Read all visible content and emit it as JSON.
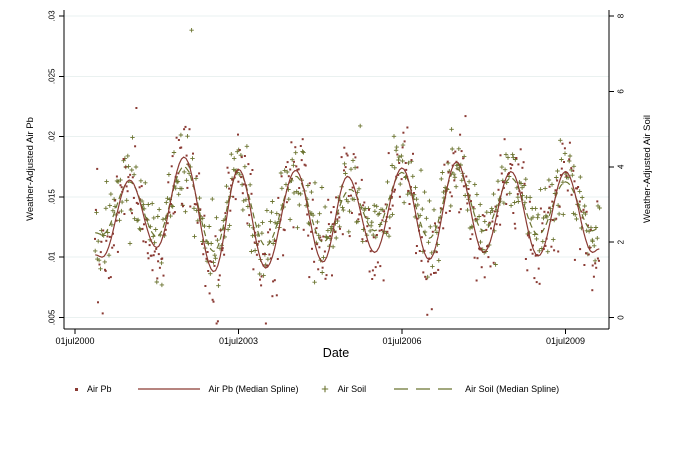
{
  "page": {
    "background": "#ffffff"
  },
  "chart_data": {
    "type": "scatter",
    "title": "",
    "xlabel": "Date",
    "grid": {
      "show": true,
      "color": "#eaf1f0"
    },
    "legend_position": "bottom",
    "x_axis": {
      "tick_labels": [
        "01jul2000",
        "01jul2003",
        "01jul2006",
        "01jul2009"
      ],
      "tick_years": [
        2000.5,
        2003.5,
        2006.5,
        2009.5
      ]
    },
    "left_axis": {
      "title": "Weather-Adjusted Air Pb",
      "tick_labels": [
        ".005",
        ".01",
        ".015",
        ".02",
        ".025",
        ".03"
      ],
      "tick_values": [
        0.005,
        0.01,
        0.015,
        0.02,
        0.025,
        0.03
      ],
      "range": [
        0.005,
        0.03
      ]
    },
    "right_axis": {
      "title": "Weather-Adjusted Air Soil",
      "tick_labels": [
        "0",
        "2",
        "4",
        "6",
        "8"
      ],
      "tick_values": [
        0,
        2,
        4,
        6,
        8
      ],
      "range": [
        0,
        8
      ]
    },
    "series": [
      {
        "name": "Air Pb",
        "type": "scatter",
        "axis": "left",
        "marker": "dot",
        "color": "#8a3a33",
        "noise_sd": 0.002,
        "clamp": [
          0.0045,
          0.0295
        ],
        "spline_ref": 1
      },
      {
        "name": "Air Pb (Median Spline)",
        "type": "spline",
        "axis": "left",
        "color": "#8a3a33",
        "dash": null,
        "knots": [
          [
            2000.87,
            0.0102
          ],
          [
            2001.0,
            0.01
          ],
          [
            2001.5,
            0.0164
          ],
          [
            2002.0,
            0.0108
          ],
          [
            2002.5,
            0.0183
          ],
          [
            2003.05,
            0.0088
          ],
          [
            2003.5,
            0.0173
          ],
          [
            2004.0,
            0.0091
          ],
          [
            2004.55,
            0.0172
          ],
          [
            2005.05,
            0.0096
          ],
          [
            2005.5,
            0.0167
          ],
          [
            2006.0,
            0.0104
          ],
          [
            2006.5,
            0.0174
          ],
          [
            2007.0,
            0.0098
          ],
          [
            2007.5,
            0.0179
          ],
          [
            2008.0,
            0.0104
          ],
          [
            2008.5,
            0.0171
          ],
          [
            2009.0,
            0.0101
          ],
          [
            2009.5,
            0.0171
          ],
          [
            2010.0,
            0.0104
          ],
          [
            2010.12,
            0.0107
          ]
        ]
      },
      {
        "name": "Air Soil",
        "type": "scatter",
        "axis": "right",
        "marker": "plus",
        "color": "#6b7430",
        "noise_sd": 0.55,
        "clamp": [
          0.15,
          7.85
        ],
        "spline_ref": 3
      },
      {
        "name": "Air Soil (Median Spline)",
        "type": "spline",
        "axis": "right",
        "color": "#6b7430",
        "dash": "6 3.5",
        "knots": [
          [
            2000.87,
            2.25
          ],
          [
            2001.0,
            2.2
          ],
          [
            2001.5,
            3.6
          ],
          [
            2002.0,
            2.15
          ],
          [
            2002.5,
            4.0
          ],
          [
            2003.05,
            1.75
          ],
          [
            2003.5,
            3.85
          ],
          [
            2004.0,
            1.9
          ],
          [
            2004.55,
            3.75
          ],
          [
            2005.05,
            2.0
          ],
          [
            2005.55,
            3.4
          ],
          [
            2006.0,
            2.3
          ],
          [
            2006.5,
            3.85
          ],
          [
            2007.0,
            2.1
          ],
          [
            2007.5,
            3.95
          ],
          [
            2008.0,
            2.3
          ],
          [
            2008.5,
            3.7
          ],
          [
            2009.0,
            2.2
          ],
          [
            2009.5,
            3.6
          ],
          [
            2010.0,
            2.3
          ],
          [
            2010.12,
            2.4
          ]
        ]
      }
    ],
    "sampling": {
      "start": 2000.87,
      "end": 2010.12,
      "points_per_year": 52,
      "seed": 11,
      "tail_prob": 0.035,
      "tail_mult": 2.3,
      "x_jitter": 0.015
    }
  }
}
